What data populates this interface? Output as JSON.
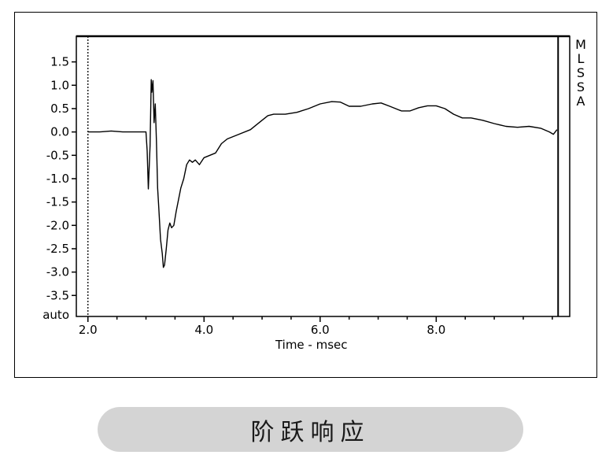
{
  "chart_data": {
    "type": "line",
    "title": "",
    "xlabel": "Time - msec",
    "ylabel": "",
    "xlim": [
      1.8,
      10.3
    ],
    "ylim": [
      -3.95,
      2.05
    ],
    "x_ticks": [
      2.0,
      4.0,
      6.0,
      8.0
    ],
    "x_tick_labels": [
      "2.0",
      "4.0",
      "6.0",
      "8.0"
    ],
    "y_ticks": [
      1.5,
      1.0,
      0.5,
      0.0,
      -0.5,
      -1.0,
      -1.5,
      -2.0,
      -2.5,
      -3.0,
      -3.5
    ],
    "y_tick_labels": [
      "1.5",
      "1.0",
      "0.5",
      "0.0",
      "-0.5",
      "-1.0",
      "-1.5",
      "-2.0",
      "-2.5",
      "-3.0",
      "-3.5"
    ],
    "y_extra_label": "auto",
    "side_label": [
      "M",
      "L",
      "S",
      "S",
      "A"
    ],
    "cursor_left_x": 2.0,
    "cursor_right_x": 10.1,
    "grid": false,
    "series": [
      {
        "values": [
          [
            2.0,
            0.0
          ],
          [
            2.2,
            0.0
          ],
          [
            2.4,
            0.02
          ],
          [
            2.6,
            0.0
          ],
          [
            2.8,
            0.0
          ],
          [
            3.0,
            0.0
          ],
          [
            3.02,
            -0.4
          ],
          [
            3.04,
            -1.22
          ],
          [
            3.07,
            -0.3
          ],
          [
            3.09,
            1.12
          ],
          [
            3.1,
            0.85
          ],
          [
            3.12,
            1.1
          ],
          [
            3.14,
            0.2
          ],
          [
            3.16,
            0.6
          ],
          [
            3.18,
            -0.2
          ],
          [
            3.2,
            -1.2
          ],
          [
            3.22,
            -1.6
          ],
          [
            3.25,
            -2.3
          ],
          [
            3.28,
            -2.6
          ],
          [
            3.3,
            -2.9
          ],
          [
            3.32,
            -2.85
          ],
          [
            3.35,
            -2.5
          ],
          [
            3.38,
            -2.1
          ],
          [
            3.41,
            -1.95
          ],
          [
            3.44,
            -2.05
          ],
          [
            3.48,
            -2.0
          ],
          [
            3.52,
            -1.7
          ],
          [
            3.6,
            -1.2
          ],
          [
            3.65,
            -1.0
          ],
          [
            3.7,
            -0.7
          ],
          [
            3.75,
            -0.6
          ],
          [
            3.8,
            -0.65
          ],
          [
            3.85,
            -0.6
          ],
          [
            3.92,
            -0.7
          ],
          [
            4.0,
            -0.55
          ],
          [
            4.1,
            -0.5
          ],
          [
            4.2,
            -0.45
          ],
          [
            4.3,
            -0.25
          ],
          [
            4.4,
            -0.15
          ],
          [
            4.6,
            -0.05
          ],
          [
            4.8,
            0.05
          ],
          [
            4.9,
            0.15
          ],
          [
            5.0,
            0.25
          ],
          [
            5.1,
            0.35
          ],
          [
            5.2,
            0.38
          ],
          [
            5.4,
            0.38
          ],
          [
            5.6,
            0.42
          ],
          [
            5.8,
            0.5
          ],
          [
            6.0,
            0.6
          ],
          [
            6.2,
            0.65
          ],
          [
            6.35,
            0.64
          ],
          [
            6.5,
            0.55
          ],
          [
            6.7,
            0.55
          ],
          [
            6.9,
            0.6
          ],
          [
            7.05,
            0.62
          ],
          [
            7.2,
            0.55
          ],
          [
            7.4,
            0.45
          ],
          [
            7.55,
            0.45
          ],
          [
            7.7,
            0.52
          ],
          [
            7.85,
            0.56
          ],
          [
            8.0,
            0.56
          ],
          [
            8.15,
            0.5
          ],
          [
            8.3,
            0.38
          ],
          [
            8.45,
            0.3
          ],
          [
            8.6,
            0.3
          ],
          [
            8.8,
            0.25
          ],
          [
            9.0,
            0.18
          ],
          [
            9.2,
            0.12
          ],
          [
            9.4,
            0.1
          ],
          [
            9.6,
            0.12
          ],
          [
            9.8,
            0.08
          ],
          [
            9.95,
            0.0
          ],
          [
            10.02,
            -0.05
          ],
          [
            10.08,
            0.05
          ]
        ]
      }
    ]
  },
  "caption": "阶跃响应",
  "colors": {
    "line": "#000000",
    "pill": "#d4d4d4",
    "frame": "#000000"
  }
}
